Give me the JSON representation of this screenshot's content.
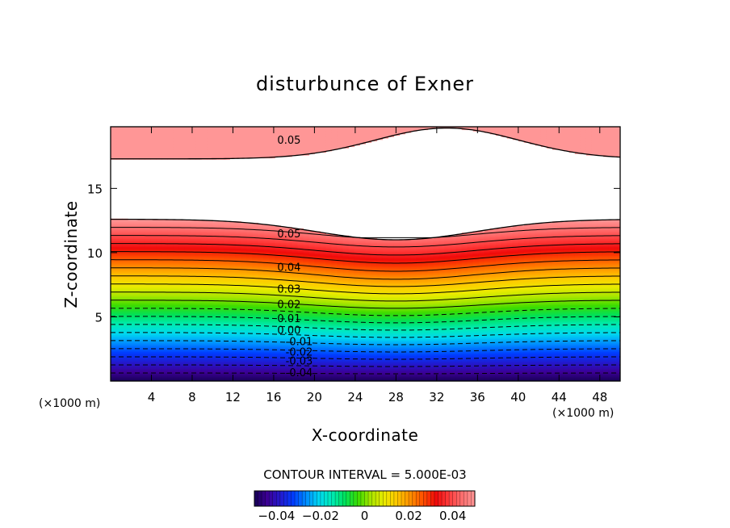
{
  "chart_data": {
    "type": "contour",
    "title": "disturbunce of Exner",
    "xlabel": "X-coordinate",
    "ylabel": "Z-coordinate",
    "x_unit_label_left": "(×1000 m)",
    "x_unit_label_right": "(×1000 m)",
    "xlim": [
      0,
      50
    ],
    "ylim": [
      0,
      19.8
    ],
    "x_ticks": [
      4,
      8,
      12,
      16,
      20,
      24,
      28,
      32,
      36,
      40,
      44,
      48
    ],
    "x_tick_labels": [
      "4",
      "8",
      "12",
      "16",
      "20",
      "24",
      "28",
      "32",
      "36",
      "40",
      "44",
      "48"
    ],
    "y_ticks": [
      5,
      10,
      15
    ],
    "y_tick_labels": [
      "5",
      "10",
      "15"
    ],
    "contour_interval_text": "CONTOUR INTERVAL = 5.000E-03",
    "contour_labels": [
      {
        "text": "0.05",
        "x": 17.5,
        "z": 18.8
      },
      {
        "text": "0.05",
        "x": 17.5,
        "z": 11.5
      },
      {
        "text": "0.04",
        "x": 17.5,
        "z": 8.9
      },
      {
        "text": "0.03",
        "x": 17.5,
        "z": 7.2
      },
      {
        "text": "0.02",
        "x": 17.5,
        "z": 6.0
      },
      {
        "text": "0.01",
        "x": 17.5,
        "z": 4.9
      },
      {
        "text": "0.00",
        "x": 17.5,
        "z": 4.0
      },
      {
        "text": "-0.01",
        "x": 18.5,
        "z": 3.1
      },
      {
        "text": "-0.02",
        "x": 18.5,
        "z": 2.3
      },
      {
        "text": "-0.03",
        "x": 18.5,
        "z": 1.6
      },
      {
        "text": "-0.04",
        "x": 18.5,
        "z": 0.7
      }
    ],
    "colorbar": {
      "range": [
        -0.05,
        0.05
      ],
      "tick_values": [
        -0.04,
        -0.02,
        0,
        0.02,
        0.04
      ],
      "tick_labels": [
        "−0.04",
        "−0.02",
        "0",
        "0.02",
        "0.04"
      ]
    },
    "colors": {
      "axis": "#000000",
      "missing_region": "#ffffff"
    }
  }
}
